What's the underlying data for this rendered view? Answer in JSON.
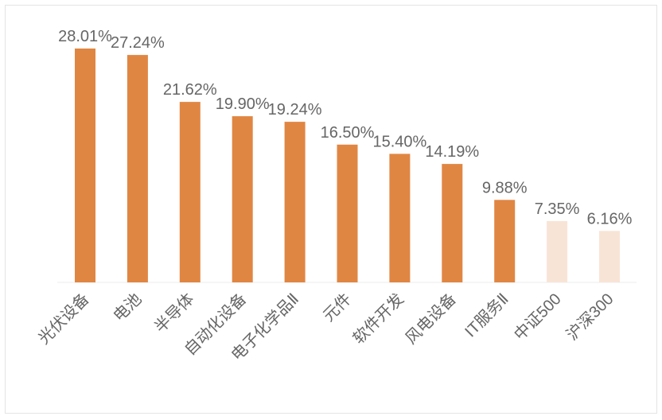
{
  "chart_data": {
    "type": "bar",
    "categories": [
      "光伏设备",
      "电池",
      "半导体",
      "自动化设备",
      "电子化学品Ⅱ",
      "元件",
      "软件开发",
      "风电设备",
      "IT服务Ⅱ",
      "中证500",
      "沪深300"
    ],
    "values": [
      28.01,
      27.24,
      21.62,
      19.9,
      19.24,
      16.5,
      15.4,
      14.19,
      9.88,
      7.35,
      6.16
    ],
    "value_labels": [
      "28.01%",
      "27.24%",
      "21.62%",
      "19.90%",
      "19.24%",
      "16.50%",
      "15.40%",
      "14.19%",
      "9.88%",
      "7.35%",
      "6.16%"
    ],
    "ylim": [
      0,
      28.01
    ],
    "grid": false,
    "legend": "none",
    "colors": {
      "primary": "#E08643",
      "index": "#F8E4D6",
      "text": "#666666",
      "axis": "#eeeeee"
    },
    "bar_color_keys": [
      "primary",
      "primary",
      "primary",
      "primary",
      "primary",
      "primary",
      "primary",
      "primary",
      "primary",
      "index",
      "index"
    ]
  }
}
